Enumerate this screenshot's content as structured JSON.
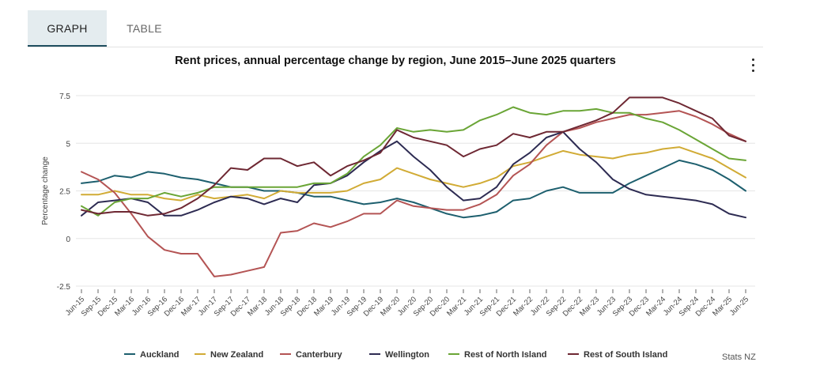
{
  "tabs": [
    {
      "label": "GRAPH",
      "active": true
    },
    {
      "label": "TABLE",
      "active": false
    }
  ],
  "menu_icon": "more-vertical-icon",
  "source": "Stats NZ",
  "chart_data": {
    "type": "line",
    "title": "Rent prices, annual percentage change by region, June 2015–June 2025 quarters",
    "xlabel": "",
    "ylabel": "Percentage change",
    "ylim": [
      -2.5,
      7.5
    ],
    "yticks": [
      7.5,
      5,
      2.5,
      0,
      -2.5
    ],
    "ytick_labels": [
      "7.5",
      "5",
      "2.5",
      "0",
      "-2.5"
    ],
    "grid": true,
    "legend_position": "bottom",
    "categories": [
      "Jun-15",
      "Sep-15",
      "Dec-15",
      "Mar-16",
      "Jun-16",
      "Sep-16",
      "Dec-16",
      "Mar-17",
      "Jun-17",
      "Sep-17",
      "Dec-17",
      "Mar-18",
      "Jun-18",
      "Sep-18",
      "Dec-18",
      "Mar-19",
      "Jun-19",
      "Sep-19",
      "Dec-19",
      "Mar-20",
      "Jun-20",
      "Sep-20",
      "Dec-20",
      "Mar-21",
      "Jun-21",
      "Sep-21",
      "Dec-21",
      "Mar-22",
      "Jun-22",
      "Sep-22",
      "Dec-22",
      "Mar-23",
      "Jun-23",
      "Sep-23",
      "Dec-23",
      "Mar-24",
      "Jun-24",
      "Sep-24",
      "Dec-24",
      "Mar-25",
      "Jun-25"
    ],
    "series": [
      {
        "name": "Auckland",
        "color": "#1d5f6e",
        "values": [
          2.9,
          3.0,
          3.3,
          3.2,
          3.5,
          3.4,
          3.2,
          3.1,
          2.9,
          2.7,
          2.7,
          2.5,
          2.5,
          2.4,
          2.2,
          2.2,
          2.0,
          1.8,
          1.9,
          2.1,
          1.9,
          1.6,
          1.3,
          1.1,
          1.2,
          1.4,
          2.0,
          2.1,
          2.5,
          2.7,
          2.4,
          2.4,
          2.4,
          2.9,
          3.3,
          3.7,
          4.1,
          3.9,
          3.6,
          3.1,
          2.5
        ]
      },
      {
        "name": "New Zealand",
        "color": "#d1ab35",
        "values": [
          2.3,
          2.3,
          2.5,
          2.3,
          2.3,
          2.1,
          2.0,
          2.3,
          2.1,
          2.2,
          2.3,
          2.1,
          2.5,
          2.4,
          2.4,
          2.4,
          2.5,
          2.9,
          3.1,
          3.7,
          3.4,
          3.1,
          2.9,
          2.7,
          2.9,
          3.2,
          3.8,
          4.0,
          4.3,
          4.6,
          4.4,
          4.3,
          4.2,
          4.4,
          4.5,
          4.7,
          4.8,
          4.5,
          4.2,
          3.7,
          3.2
        ]
      },
      {
        "name": "Canterbury",
        "color": "#b45454",
        "values": [
          3.5,
          3.1,
          2.4,
          1.3,
          0.1,
          -0.6,
          -0.8,
          -0.8,
          -2.0,
          -1.9,
          -1.7,
          -1.5,
          0.3,
          0.4,
          0.8,
          0.6,
          0.9,
          1.3,
          1.3,
          2.0,
          1.7,
          1.6,
          1.5,
          1.5,
          1.8,
          2.3,
          3.3,
          3.9,
          4.9,
          5.6,
          5.8,
          6.1,
          6.3,
          6.5,
          6.5,
          6.6,
          6.7,
          6.4,
          6.0,
          5.5,
          5.1
        ]
      },
      {
        "name": "Wellington",
        "color": "#2d2b52",
        "values": [
          1.2,
          1.9,
          2.0,
          2.1,
          1.9,
          1.2,
          1.2,
          1.5,
          1.9,
          2.2,
          2.1,
          1.8,
          2.1,
          1.9,
          2.8,
          2.9,
          3.3,
          4.0,
          4.6,
          5.1,
          4.3,
          3.6,
          2.7,
          2.0,
          2.1,
          2.7,
          3.9,
          4.5,
          5.3,
          5.6,
          4.7,
          4.0,
          3.1,
          2.6,
          2.3,
          2.2,
          2.1,
          2.0,
          1.8,
          1.3,
          1.1
        ]
      },
      {
        "name": "Rest of North Island",
        "color": "#6aa536",
        "values": [
          1.7,
          1.2,
          1.9,
          2.1,
          2.1,
          2.4,
          2.2,
          2.4,
          2.7,
          2.7,
          2.7,
          2.7,
          2.7,
          2.7,
          2.9,
          2.9,
          3.4,
          4.3,
          4.9,
          5.8,
          5.6,
          5.7,
          5.6,
          5.7,
          6.2,
          6.5,
          6.9,
          6.6,
          6.5,
          6.7,
          6.7,
          6.8,
          6.6,
          6.6,
          6.3,
          6.1,
          5.7,
          5.2,
          4.7,
          4.2,
          4.1
        ]
      },
      {
        "name": "Rest of South Island",
        "color": "#6e2833",
        "values": [
          1.5,
          1.3,
          1.4,
          1.4,
          1.2,
          1.3,
          1.6,
          2.1,
          2.8,
          3.7,
          3.6,
          4.2,
          4.2,
          3.8,
          4.0,
          3.3,
          3.8,
          4.1,
          4.5,
          5.7,
          5.3,
          5.1,
          4.9,
          4.3,
          4.7,
          4.9,
          5.5,
          5.3,
          5.6,
          5.6,
          5.9,
          6.2,
          6.6,
          7.4,
          7.4,
          7.4,
          7.1,
          6.7,
          6.3,
          5.4,
          5.1
        ]
      }
    ]
  }
}
